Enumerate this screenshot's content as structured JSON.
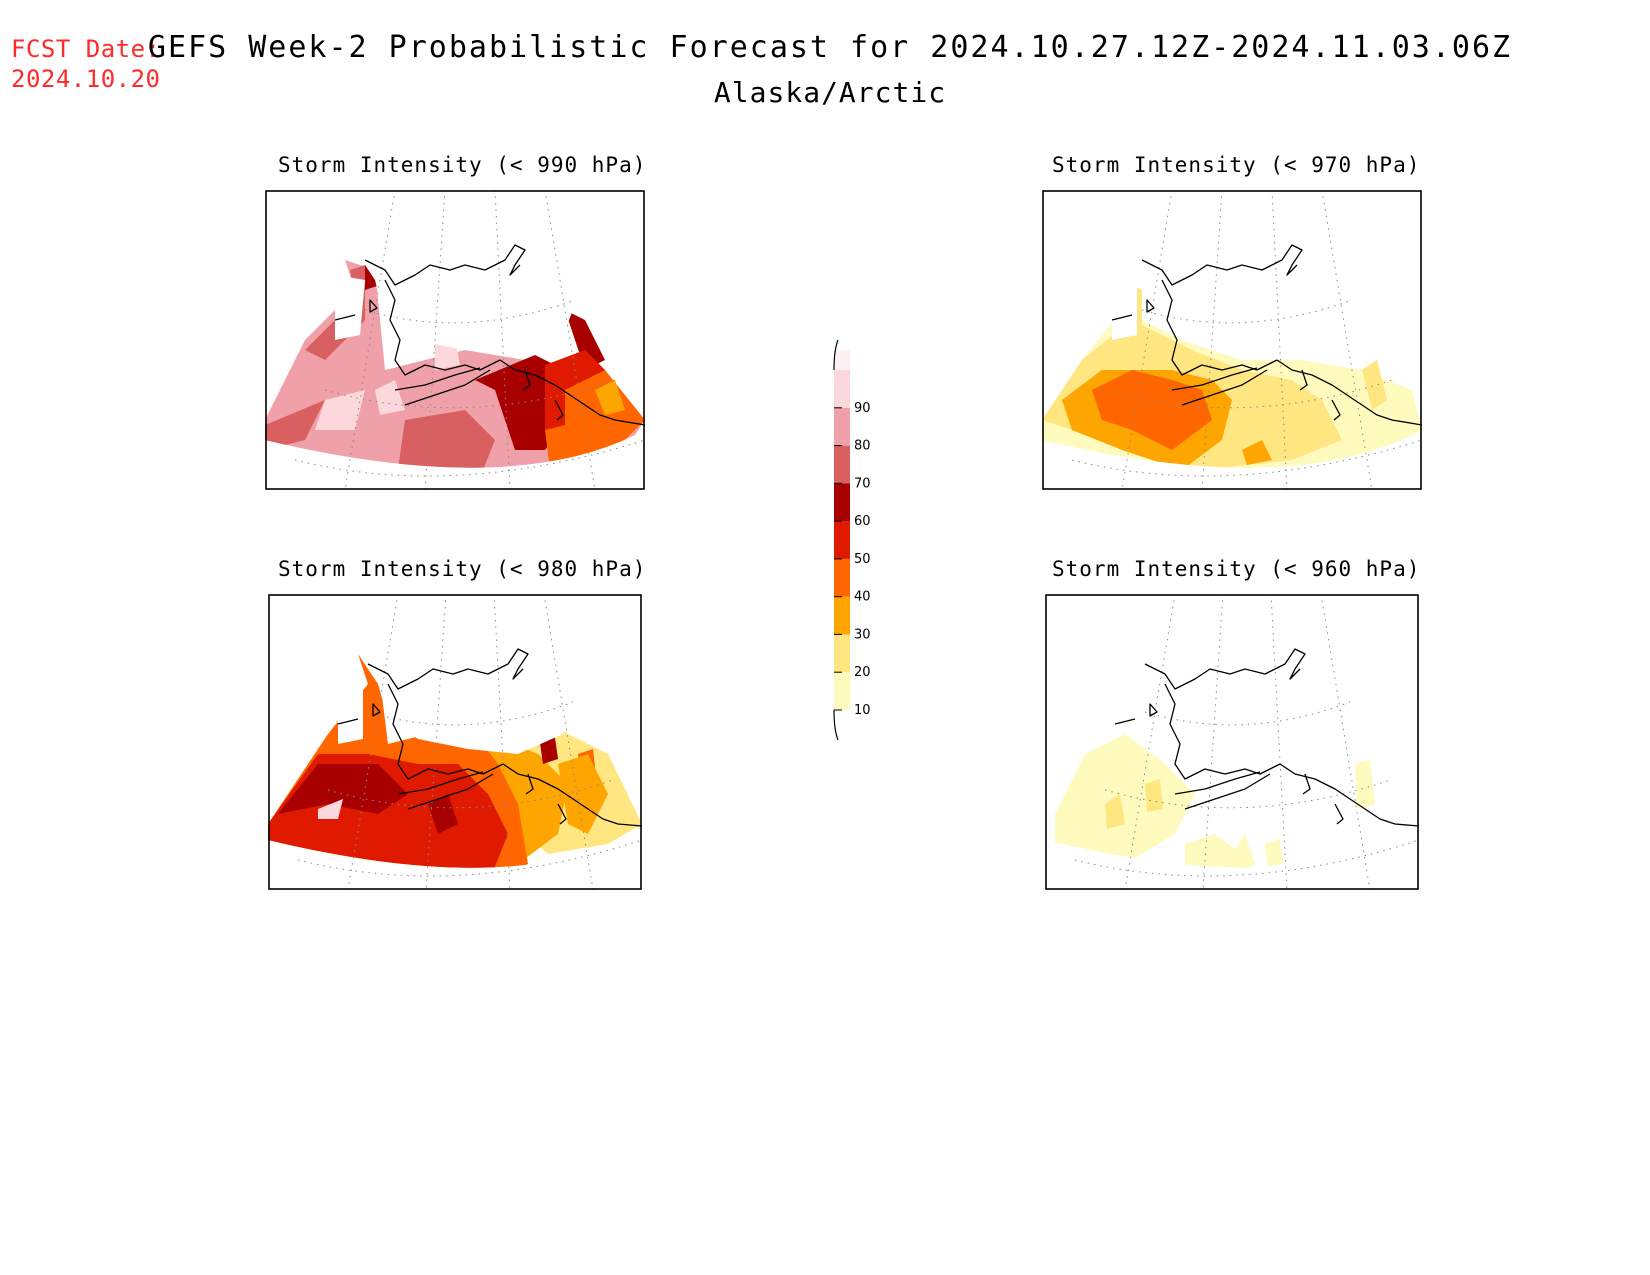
{
  "header": {
    "fcst_label": "FCST Date:",
    "fcst_date": "2024.10.20",
    "title": "GEFS Week-2 Probabilistic Forecast for 2024.10.27.12Z-2024.11.03.06Z",
    "subtitle": "Alaska/Arctic"
  },
  "colors": {
    "c10": "#fffbbf",
    "c20": "#ffe680",
    "c30": "#ffa500",
    "c40": "#ff6600",
    "c50": "#e01a00",
    "c60": "#a80000",
    "c70": "#d86060",
    "c80": "#f0a0a8",
    "c90": "#fcd8dc"
  },
  "panels": [
    {
      "id": "p990",
      "title": "Storm Intensity (< 990 hPa)"
    },
    {
      "id": "p970",
      "title": "Storm Intensity (< 970 hPa)"
    },
    {
      "id": "p980",
      "title": "Storm Intensity (< 980 hPa)"
    },
    {
      "id": "p960",
      "title": "Storm Intensity (< 960 hPa)"
    }
  ],
  "legend": {
    "units": "%",
    "levels": [
      10,
      20,
      30,
      40,
      50,
      60,
      70,
      80,
      90
    ],
    "labels": [
      "10",
      "20",
      "30",
      "40",
      "50",
      "60",
      "70",
      "80",
      "90"
    ]
  }
}
